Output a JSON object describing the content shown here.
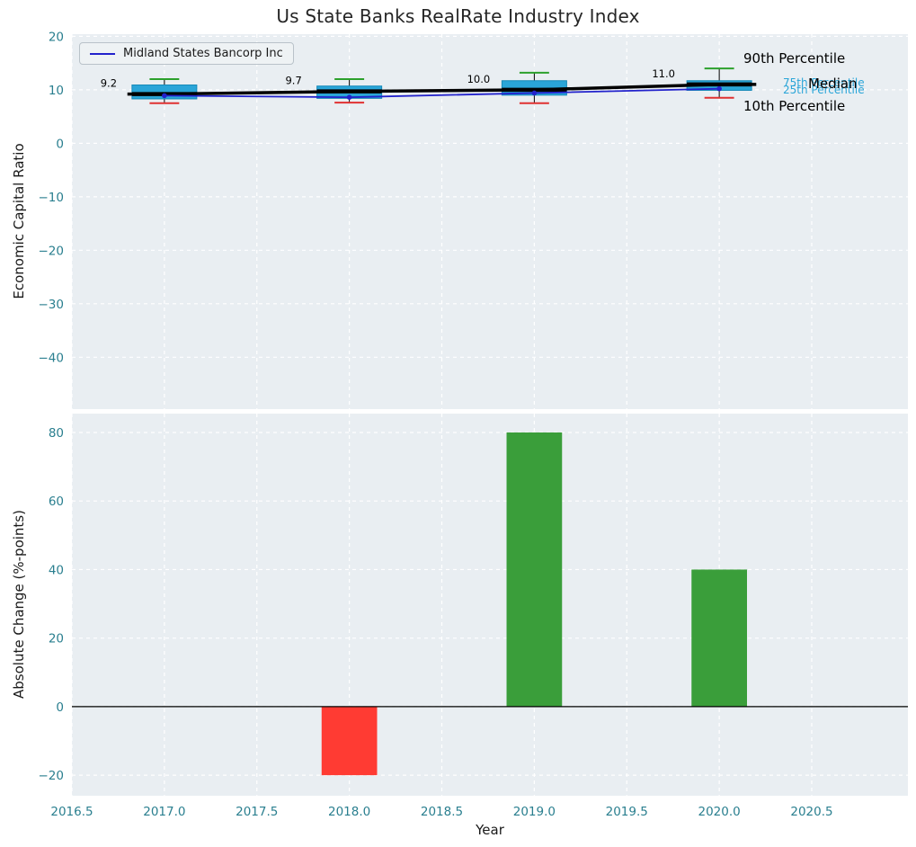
{
  "title": "Us State Banks RealRate Industry Index",
  "legend": {
    "label": "Midland States Bancorp Inc"
  },
  "colors": {
    "figure_bg": "#ffffff",
    "axes_bg": "#e9eef2",
    "grid": "#ffffff",
    "tick_label": "#2a7f8f",
    "title_text": "#262626",
    "axis_label_text": "#1a1a1a",
    "box_fill": "#2aa5d8",
    "box_edge": "#1589b8",
    "whisker": "#000000",
    "cap_high": "#2ca02c",
    "cap_low": "#e03131",
    "median": "#000000",
    "company_line": "#2222cc",
    "bar_positive": "#3a9e3a",
    "bar_negative": "#ff3b33",
    "annotation": "#000000",
    "percentile_label": "#2aa5d8",
    "zero_line": "#000000"
  },
  "chart_data": [
    {
      "type": "boxplot",
      "title": "Us State Banks RealRate Industry Index",
      "ylabel": "Economic Capital Ratio",
      "xlim": [
        2016.5,
        2021.02
      ],
      "ylim": [
        -49.7,
        20.4
      ],
      "grid": true,
      "legend_position": "upper left",
      "ytick_values": [
        20,
        10,
        0,
        -10,
        -20,
        -30,
        -40
      ],
      "ytick_labels": [
        "20",
        "10",
        "0",
        "−10",
        "−20",
        "−30",
        "−40"
      ],
      "years": [
        2017,
        2018,
        2019,
        2020
      ],
      "boxes": [
        {
          "year": 2017,
          "median": 9.2,
          "q1": 8.3,
          "q3": 10.9,
          "whisker_low": 7.5,
          "whisker_high": 12.0
        },
        {
          "year": 2018,
          "median": 9.7,
          "q1": 8.4,
          "q3": 10.7,
          "whisker_low": 7.6,
          "whisker_high": 12.0
        },
        {
          "year": 2019,
          "median": 10.0,
          "q1": 9.0,
          "q3": 11.7,
          "whisker_low": 7.5,
          "whisker_high": 13.2
        },
        {
          "year": 2020,
          "median": 11.0,
          "q1": 9.9,
          "q3": 11.7,
          "whisker_low": 8.5,
          "whisker_high": 14.0
        }
      ],
      "median_labels": [
        "9.2",
        "9.7",
        "10.0",
        "11.0"
      ],
      "median_series": {
        "name": "Median",
        "x": [
          2017,
          2018,
          2019,
          2020
        ],
        "values": [
          9.2,
          9.7,
          10.0,
          11.0
        ]
      },
      "company_series": {
        "name": "Midland States Bancorp Inc",
        "x": [
          2017,
          2018,
          2019,
          2020
        ],
        "values": [
          8.9,
          8.6,
          9.4,
          10.2
        ]
      },
      "annotations": {
        "p90": "90th Percentile",
        "median": "Median",
        "p10": "10th Percentile",
        "p75": "75th Percentile",
        "p25": "25th Percentile"
      }
    },
    {
      "type": "bar",
      "ylabel": "Absolute Change (%-points)",
      "xlabel": "Year",
      "xlim": [
        2016.5,
        2021.02
      ],
      "ylim": [
        -26,
        85.5
      ],
      "grid": true,
      "bar_width": 0.3,
      "ytick_values": [
        80,
        60,
        40,
        20,
        0,
        -20
      ],
      "ytick_labels": [
        "80",
        "60",
        "40",
        "20",
        "0",
        "−20"
      ],
      "xtick_values": [
        2016.5,
        2017.0,
        2017.5,
        2018.0,
        2018.5,
        2019.0,
        2019.5,
        2020.0,
        2020.5
      ],
      "xtick_labels": [
        "2016.5",
        "2017.0",
        "2017.5",
        "2018.0",
        "2018.5",
        "2019.0",
        "2019.5",
        "2020.0",
        "2020.5"
      ],
      "bars": [
        {
          "year": 2018,
          "value": -20.0,
          "color_key": "bar_negative"
        },
        {
          "year": 2019,
          "value": 80.0,
          "color_key": "bar_positive"
        },
        {
          "year": 2020,
          "value": 40.0,
          "color_key": "bar_positive"
        }
      ]
    }
  ]
}
